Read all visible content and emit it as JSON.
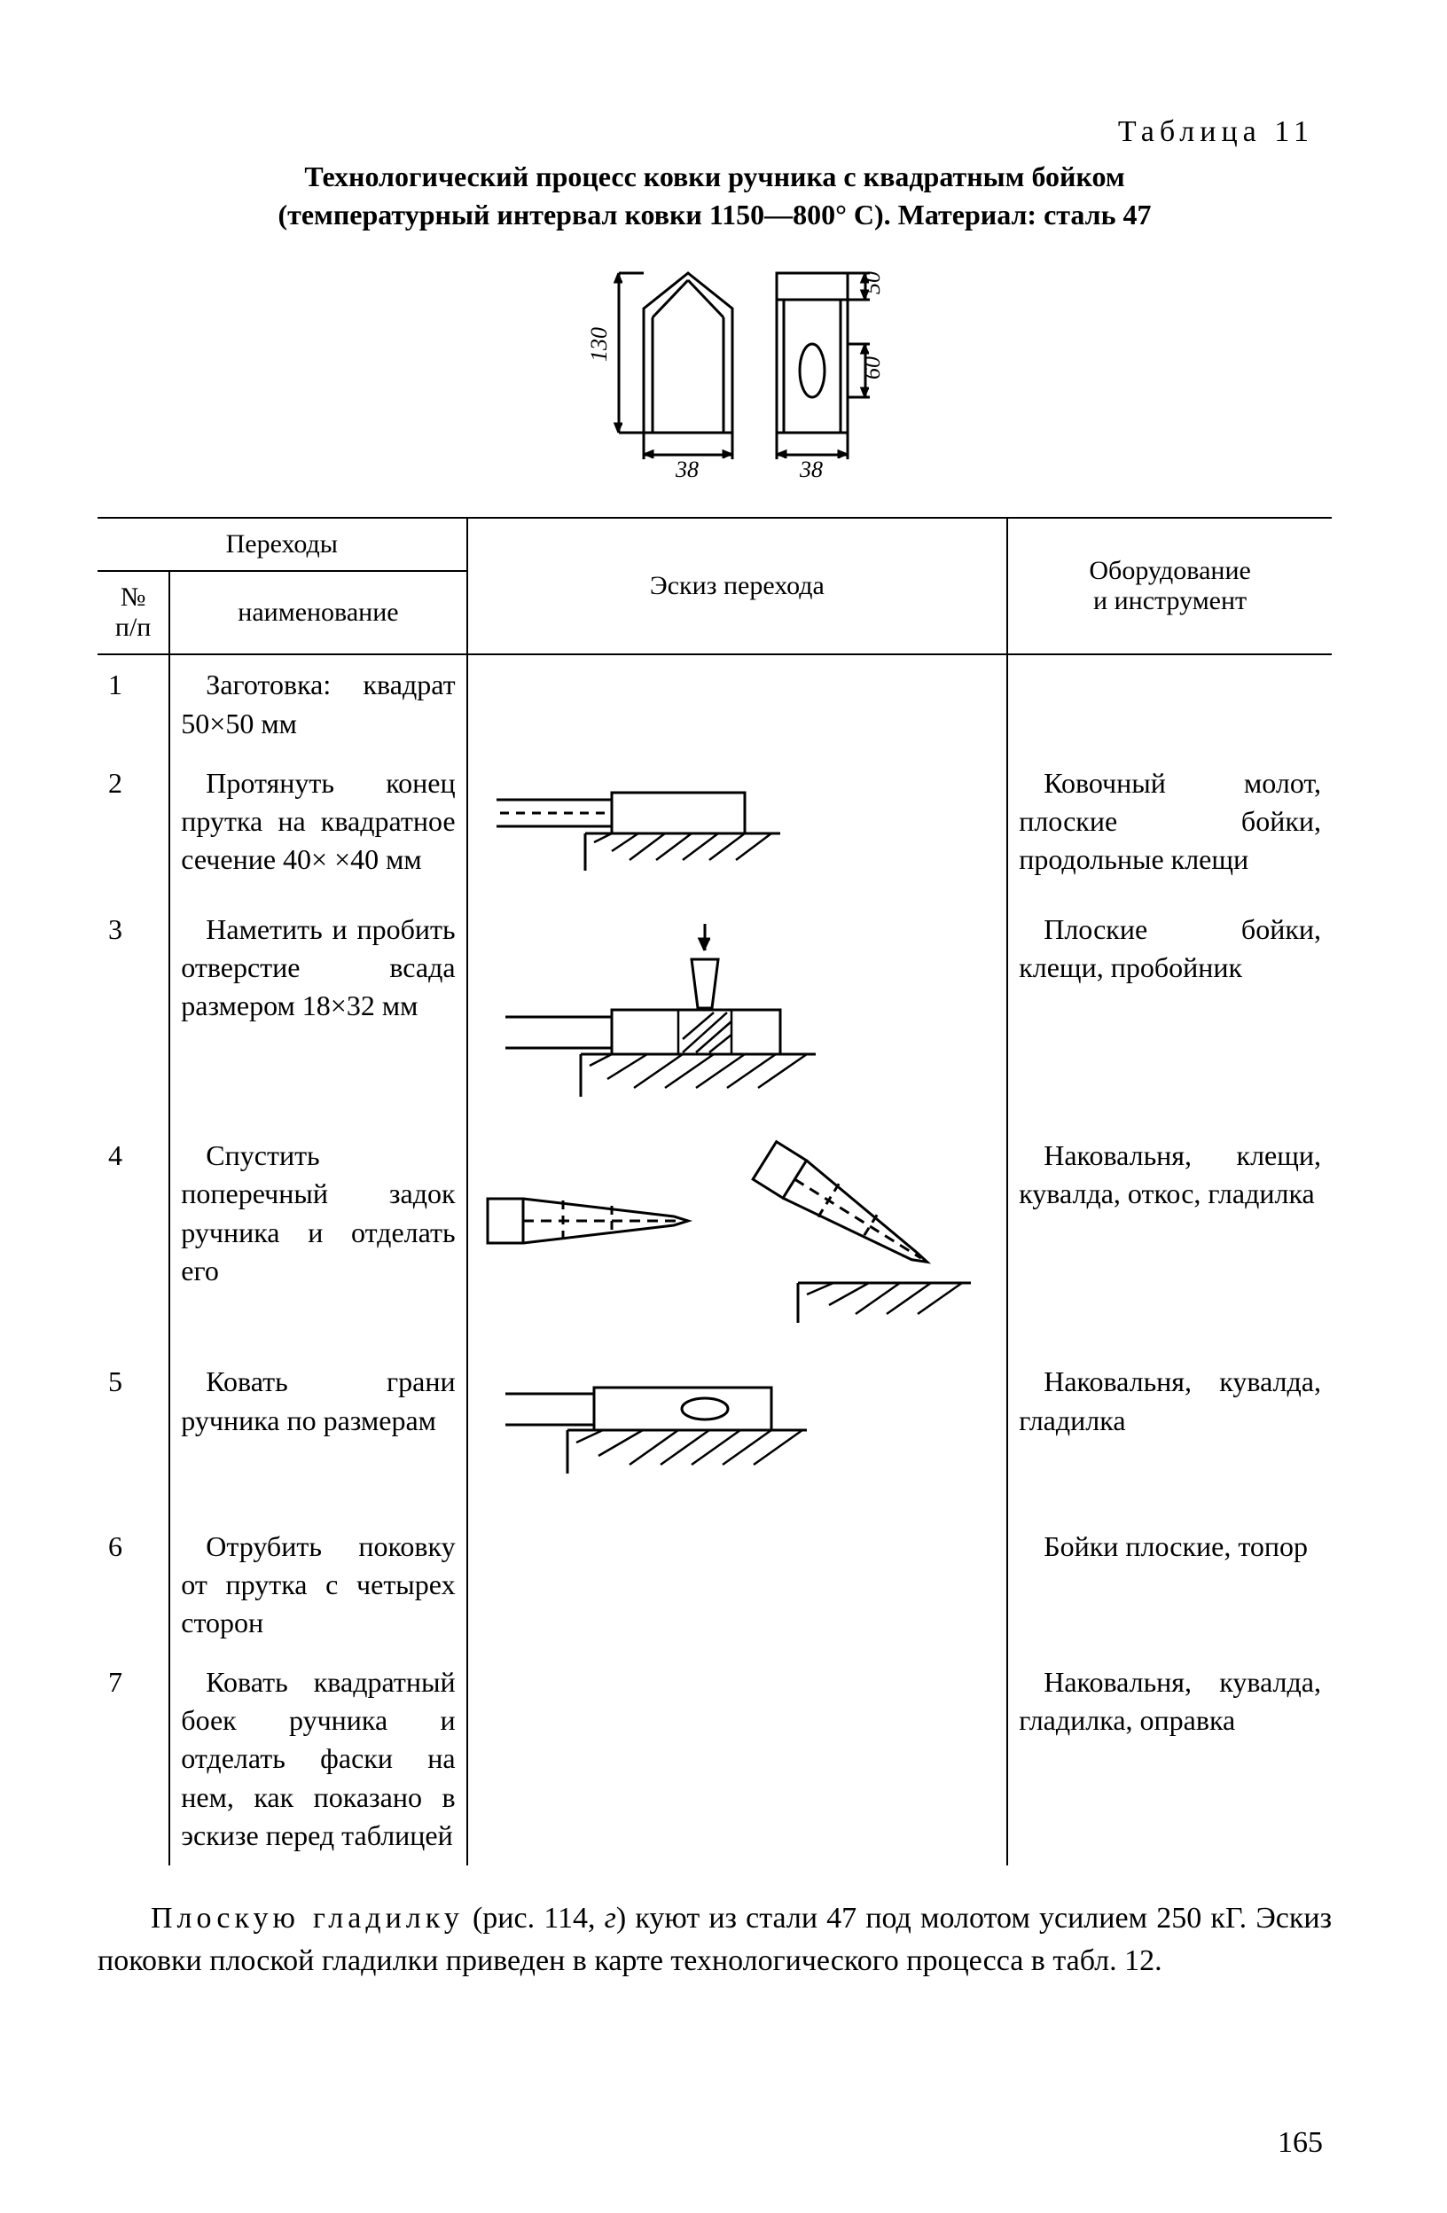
{
  "table_label": "Таблица 11",
  "title_line1": "Технологический процесс ковки ручника с квадратным бойком",
  "title_line2": "(температурный интервал ковки 1150—800° С). Материал: сталь 47",
  "top_diagram": {
    "dim_130": "130",
    "dim_50": "50",
    "dim_60": "60",
    "dim_38_left": "38",
    "dim_38_right": "38",
    "stroke": "#000000",
    "stroke_width": 3
  },
  "headers": {
    "transitions": "Переходы",
    "no": "№\nп/п",
    "name": "наименование",
    "sketch": "Эскиз перехода",
    "tool": "Оборудование\nи инструмент"
  },
  "rows": [
    {
      "no": "1",
      "name": "Заготовка: квадрат 50×50 мм",
      "sketch": "none",
      "tool": ""
    },
    {
      "no": "2",
      "name": "Протянуть конец прутка на квадратное сечение 40× ×40 мм",
      "sketch": "step2",
      "tool": "Ковочный молот, плоские бойки, продольные клещи"
    },
    {
      "no": "3",
      "name": "Наметить и пробить отверстие всада размером 18×32 мм",
      "sketch": "step3",
      "tool": "Плоские бойки, клещи, пробойник"
    },
    {
      "no": "4",
      "name": "Спустить поперечный задок ручника и отделать его",
      "sketch": "step4",
      "tool": "Наковальня, клещи, кувалда, откос, гладилка"
    },
    {
      "no": "5",
      "name": "Ковать грани ручника по размерам",
      "sketch": "step5",
      "tool": "Наковальня, кувалда, гладилка"
    },
    {
      "no": "6",
      "name": "Отрубить поковку от прутка с четырех сторон",
      "sketch": "none",
      "tool": "Бойки плоские, топор"
    },
    {
      "no": "7",
      "name": "Ковать квадратный боек ручника и отделать фаски на нем, как показано в эскизе перед таблицей",
      "sketch": "none",
      "tool": "Наковальня, кувалда, гладилка, оправка"
    }
  ],
  "bottom_html": "<span class='spaced'>Плоскую гладилку</span> (рис. 114, <i>г</i>) куют из стали 47 под молотом усилием 250 кГ. Эскиз поковки плоской гладилки приведен в карте технологического процесса в табл. 12.",
  "page_number": "165",
  "colors": {
    "fg": "#000000",
    "bg": "#ffffff"
  }
}
